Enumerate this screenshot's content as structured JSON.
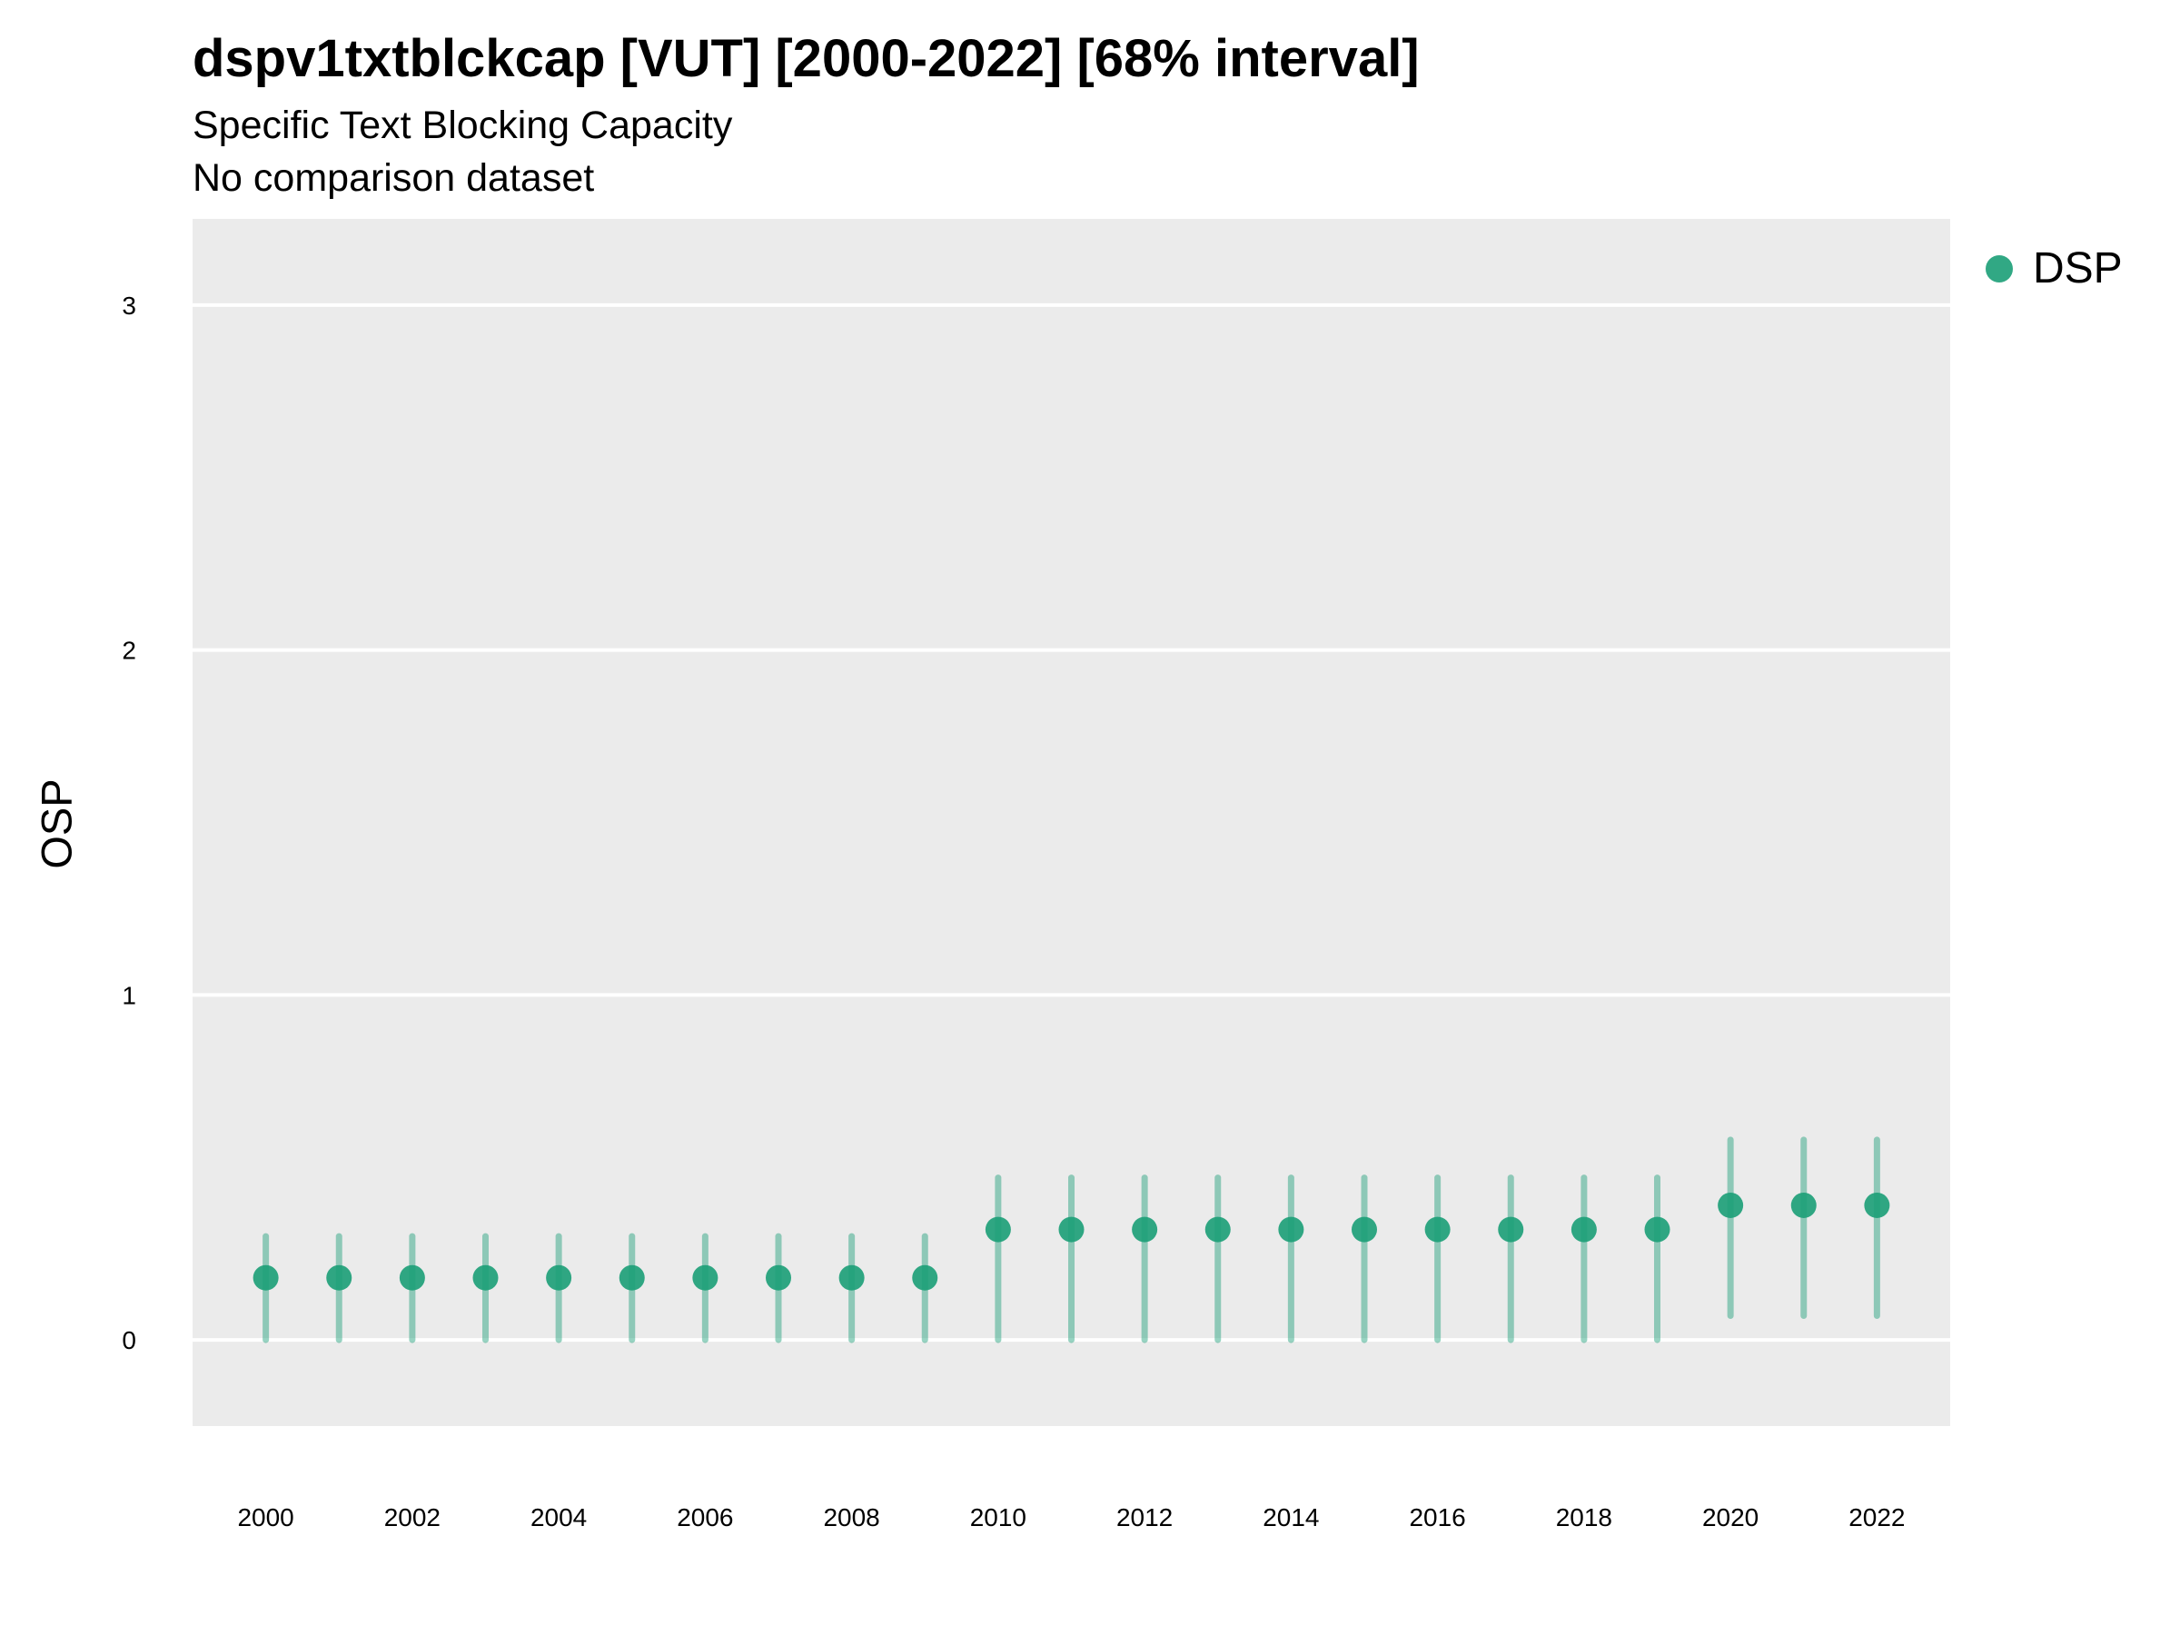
{
  "title": "dspv1txtblckcap [VUT] [2000-2022] [68% interval]",
  "subtitle": "Specific Text Blocking Capacity",
  "caption": "No comparison dataset",
  "colors": {
    "series": "#1b9e77",
    "panel": "#ebebeb",
    "grid": "#ffffff"
  },
  "chart_data": {
    "type": "scatter",
    "xlabel": "",
    "ylabel": "OSP",
    "xlim": [
      1999,
      2023
    ],
    "ylim": [
      -0.25,
      3.25
    ],
    "yticks": [
      0,
      1,
      2,
      3
    ],
    "xticks": [
      2000,
      2002,
      2004,
      2006,
      2008,
      2010,
      2012,
      2014,
      2016,
      2018,
      2020,
      2022
    ],
    "legend": "right",
    "series": [
      {
        "name": "DSP",
        "x": [
          2000,
          2001,
          2002,
          2003,
          2004,
          2005,
          2006,
          2007,
          2008,
          2009,
          2010,
          2011,
          2012,
          2013,
          2014,
          2015,
          2016,
          2017,
          2018,
          2019,
          2020,
          2021,
          2022
        ],
        "y": [
          0.18,
          0.18,
          0.18,
          0.18,
          0.18,
          0.18,
          0.18,
          0.18,
          0.18,
          0.18,
          0.32,
          0.32,
          0.32,
          0.32,
          0.32,
          0.32,
          0.32,
          0.32,
          0.32,
          0.32,
          0.39,
          0.39,
          0.39
        ],
        "lower": [
          0.0,
          0.0,
          0.0,
          0.0,
          0.0,
          0.0,
          0.0,
          0.0,
          0.0,
          0.0,
          0.0,
          0.0,
          0.0,
          0.0,
          0.0,
          0.0,
          0.0,
          0.0,
          0.0,
          0.0,
          0.07,
          0.07,
          0.07
        ],
        "upper": [
          0.3,
          0.3,
          0.3,
          0.3,
          0.3,
          0.3,
          0.3,
          0.3,
          0.3,
          0.3,
          0.47,
          0.47,
          0.47,
          0.47,
          0.47,
          0.47,
          0.47,
          0.47,
          0.47,
          0.47,
          0.58,
          0.58,
          0.58
        ]
      }
    ]
  }
}
